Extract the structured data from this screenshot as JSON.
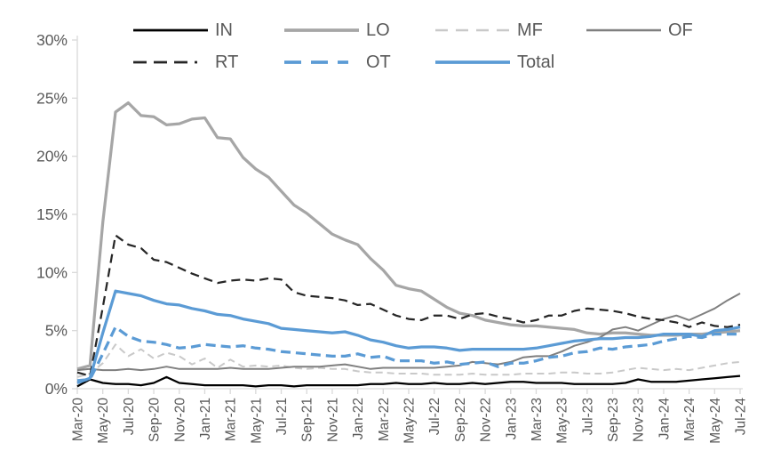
{
  "chart_data": {
    "type": "line",
    "title": "",
    "xlabel": "",
    "ylabel": "",
    "ylim": [
      0,
      30
    ],
    "y_tick_labels": [
      "0%",
      "5%",
      "10%",
      "15%",
      "20%",
      "25%",
      "30%"
    ],
    "grid": "off",
    "legend_position": "top",
    "legend_rows": [
      [
        "IN",
        "LO",
        "MF",
        "OF"
      ],
      [
        "RT",
        "OT",
        "Total"
      ]
    ],
    "x_tick_label_every": 2,
    "x": [
      "Mar-20",
      "Apr-20",
      "May-20",
      "Jun-20",
      "Jul-20",
      "Aug-20",
      "Sep-20",
      "Oct-20",
      "Nov-20",
      "Dec-20",
      "Jan-21",
      "Feb-21",
      "Mar-21",
      "Apr-21",
      "May-21",
      "Jun-21",
      "Jul-21",
      "Aug-21",
      "Sep-21",
      "Oct-21",
      "Nov-21",
      "Dec-21",
      "Jan-22",
      "Feb-22",
      "Mar-22",
      "Apr-22",
      "May-22",
      "Jun-22",
      "Jul-22",
      "Aug-22",
      "Sep-22",
      "Oct-22",
      "Nov-22",
      "Dec-22",
      "Jan-23",
      "Feb-23",
      "Mar-23",
      "Apr-23",
      "May-23",
      "Jun-23",
      "Jul-23",
      "Aug-23",
      "Sep-23",
      "Oct-23",
      "Nov-23",
      "Dec-23",
      "Jan-24",
      "Feb-24",
      "Mar-24",
      "Apr-24",
      "May-24",
      "Jun-24",
      "Jul-24"
    ],
    "series": [
      {
        "name": "IN",
        "color": "#000000",
        "line_style": "solid",
        "values": [
          0.2,
          0.8,
          0.5,
          0.4,
          0.4,
          0.3,
          0.5,
          1.0,
          0.5,
          0.4,
          0.3,
          0.3,
          0.3,
          0.3,
          0.2,
          0.3,
          0.3,
          0.2,
          0.3,
          0.3,
          0.3,
          0.3,
          0.3,
          0.4,
          0.4,
          0.5,
          0.4,
          0.4,
          0.5,
          0.4,
          0.4,
          0.5,
          0.4,
          0.5,
          0.6,
          0.6,
          0.5,
          0.5,
          0.5,
          0.4,
          0.4,
          0.4,
          0.4,
          0.5,
          0.8,
          0.6,
          0.6,
          0.6,
          0.7,
          0.8,
          0.9,
          1.0,
          1.1
        ]
      },
      {
        "name": "LO",
        "color": "#a6a6a6",
        "line_style": "solid",
        "values": [
          1.7,
          2.0,
          14.3,
          23.8,
          24.6,
          23.5,
          23.4,
          22.7,
          22.8,
          23.2,
          23.3,
          21.6,
          21.5,
          19.9,
          18.9,
          18.2,
          17.0,
          15.8,
          15.1,
          14.2,
          13.3,
          12.8,
          12.4,
          11.2,
          10.2,
          8.9,
          8.6,
          8.4,
          7.7,
          7.0,
          6.5,
          6.3,
          5.9,
          5.7,
          5.5,
          5.4,
          5.4,
          5.3,
          5.2,
          5.1,
          4.8,
          4.7,
          4.8,
          4.8,
          4.7,
          4.6,
          4.6,
          4.6,
          4.7,
          4.7,
          4.8,
          4.9,
          5.0
        ]
      },
      {
        "name": "MF",
        "color": "#c9c9c9",
        "line_style": "dashed",
        "values": [
          1.0,
          1.3,
          2.2,
          3.8,
          2.8,
          3.4,
          2.6,
          3.1,
          2.8,
          2.1,
          2.6,
          1.8,
          2.5,
          1.9,
          2.0,
          1.9,
          2.0,
          1.8,
          1.7,
          1.8,
          1.7,
          1.7,
          1.5,
          1.4,
          1.4,
          1.3,
          1.3,
          1.3,
          1.2,
          1.2,
          1.2,
          1.3,
          1.2,
          1.2,
          1.2,
          1.3,
          1.3,
          1.3,
          1.4,
          1.4,
          1.3,
          1.3,
          1.4,
          1.6,
          1.8,
          1.7,
          1.6,
          1.7,
          1.6,
          1.8,
          2.0,
          2.2,
          2.3
        ]
      },
      {
        "name": "OF",
        "color": "#7f7f7f",
        "line_style": "solid",
        "values": [
          1.6,
          1.7,
          1.6,
          1.6,
          1.7,
          1.6,
          1.7,
          1.9,
          1.7,
          1.7,
          1.7,
          1.7,
          1.8,
          1.7,
          1.7,
          1.7,
          1.8,
          1.9,
          1.9,
          1.9,
          2.0,
          2.1,
          1.9,
          1.7,
          1.8,
          1.8,
          1.8,
          1.8,
          1.8,
          1.9,
          2.0,
          2.3,
          2.2,
          2.1,
          2.3,
          2.7,
          2.8,
          2.8,
          3.2,
          3.7,
          4.0,
          4.4,
          5.1,
          5.3,
          5.0,
          5.5,
          6.0,
          6.3,
          5.9,
          6.4,
          6.9,
          7.6,
          8.2
        ]
      },
      {
        "name": "RT",
        "color": "#262626",
        "line_style": "dashed",
        "values": [
          1.4,
          1.1,
          7.0,
          13.2,
          12.4,
          12.1,
          11.1,
          10.9,
          10.4,
          9.9,
          9.5,
          9.1,
          9.3,
          9.4,
          9.3,
          9.5,
          9.4,
          8.3,
          8.0,
          7.9,
          7.8,
          7.6,
          7.2,
          7.3,
          6.8,
          6.3,
          6.0,
          5.9,
          6.3,
          6.3,
          6.0,
          6.4,
          6.5,
          6.2,
          6.0,
          5.7,
          5.9,
          6.3,
          6.3,
          6.7,
          6.9,
          6.8,
          6.7,
          6.5,
          6.2,
          6.0,
          5.9,
          5.7,
          5.3,
          5.7,
          5.4,
          5.3,
          5.5
        ]
      },
      {
        "name": "OT",
        "color": "#5b9bd5",
        "line_style": "dashed",
        "values": [
          0.7,
          0.8,
          3.0,
          5.3,
          4.5,
          4.1,
          4.0,
          3.8,
          3.5,
          3.6,
          3.8,
          3.7,
          3.6,
          3.7,
          3.5,
          3.4,
          3.2,
          3.1,
          3.0,
          2.9,
          2.8,
          2.8,
          3.0,
          2.7,
          2.8,
          2.4,
          2.4,
          2.4,
          2.2,
          2.3,
          2.1,
          2.2,
          2.3,
          1.9,
          2.2,
          2.2,
          2.4,
          2.7,
          2.8,
          3.1,
          3.2,
          3.5,
          3.4,
          3.6,
          3.7,
          3.8,
          4.1,
          4.3,
          4.5,
          4.4,
          4.7,
          4.7,
          4.7
        ]
      },
      {
        "name": "Total",
        "color": "#5b9bd5",
        "line_style": "solid",
        "values": [
          0.5,
          0.9,
          4.8,
          8.4,
          8.2,
          8.0,
          7.6,
          7.3,
          7.2,
          6.9,
          6.7,
          6.4,
          6.3,
          6.0,
          5.8,
          5.6,
          5.2,
          5.1,
          5.0,
          4.9,
          4.8,
          4.9,
          4.6,
          4.2,
          4.0,
          3.7,
          3.5,
          3.6,
          3.6,
          3.5,
          3.3,
          3.4,
          3.4,
          3.4,
          3.4,
          3.4,
          3.5,
          3.7,
          3.9,
          4.1,
          4.2,
          4.3,
          4.3,
          4.4,
          4.4,
          4.5,
          4.7,
          4.7,
          4.7,
          4.5,
          5.0,
          5.1,
          5.3
        ]
      }
    ],
    "colors": {
      "axis_line": "#d9d9d9",
      "tick_label": "#595959",
      "legend_label": "#595959",
      "accent_blue": "#5b9bd5"
    }
  }
}
